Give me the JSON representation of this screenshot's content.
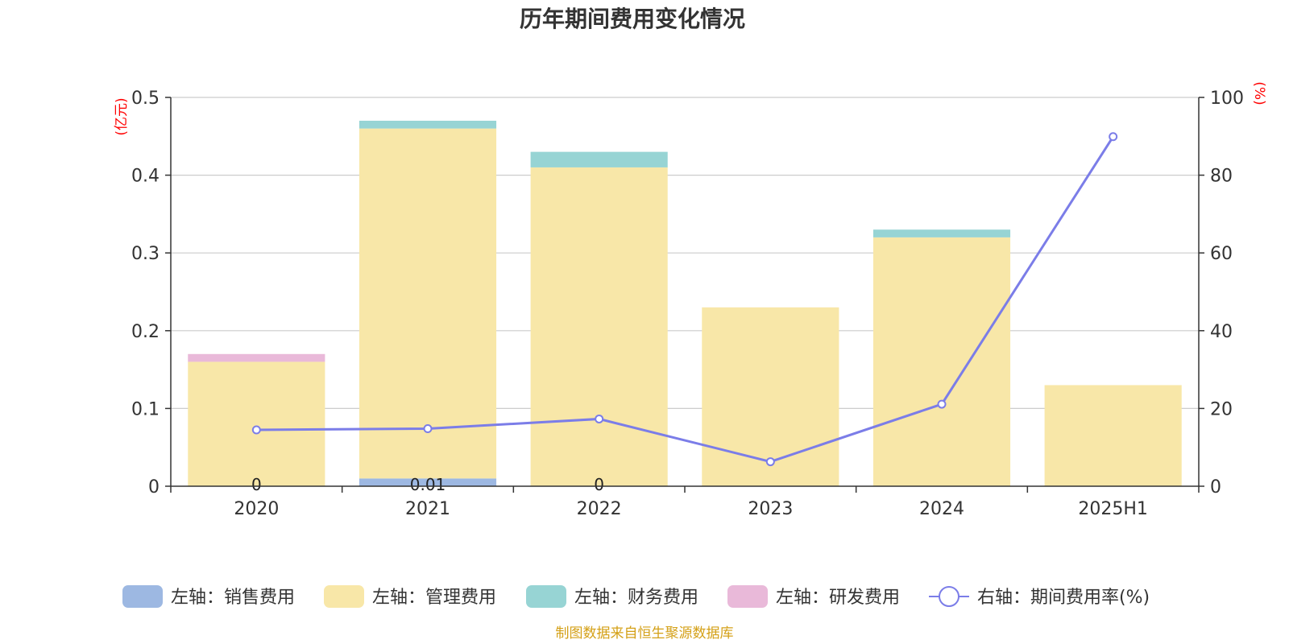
{
  "chart_data": {
    "type": "bar",
    "title": "历年期间费用变化情况",
    "source": "制图数据来自恒生聚源数据库",
    "categories": [
      "2020",
      "2021",
      "2022",
      "2023",
      "2024",
      "2025H1"
    ],
    "left_axis": {
      "unit": "(亿元)",
      "ylim": [
        0,
        0.5
      ],
      "ticks": [
        "0",
        "0.1",
        "0.2",
        "0.3",
        "0.4",
        "0.5"
      ]
    },
    "right_axis": {
      "unit": "(%)",
      "ylim": [
        0,
        100
      ],
      "ticks": [
        "0",
        "20",
        "40",
        "60",
        "80",
        "100"
      ]
    },
    "grid": true,
    "legend_position": "bottom",
    "series": [
      {
        "name": "左轴：销售费用",
        "kind": "bar",
        "stack": "total",
        "color": "#9db8e2",
        "values": [
          0,
          0.01,
          0,
          0,
          0,
          0
        ]
      },
      {
        "name": "左轴：管理费用",
        "kind": "bar",
        "stack": "total",
        "color": "#f8e7a8",
        "values": [
          0.16,
          0.45,
          0.41,
          0.23,
          0.32,
          0.13
        ]
      },
      {
        "name": "左轴：财务费用",
        "kind": "bar",
        "stack": "total",
        "color": "#97d4d4",
        "values": [
          0,
          0.01,
          0.02,
          0,
          0.01,
          0
        ]
      },
      {
        "name": "左轴：研发费用",
        "kind": "bar",
        "stack": "total",
        "color": "#e9b9d9",
        "values": [
          0.01,
          0,
          0,
          0,
          0,
          0
        ]
      },
      {
        "name": "右轴：期间费用率(%)",
        "kind": "line",
        "axis": "right",
        "color": "#7b7de8",
        "values": [
          14.5,
          14.8,
          17.3,
          6.3,
          21.1,
          89.9
        ]
      }
    ],
    "data_labels": [
      {
        "category": "2020",
        "text": "0"
      },
      {
        "category": "2021",
        "text": "0.01"
      },
      {
        "category": "2022",
        "text": "0"
      }
    ]
  }
}
